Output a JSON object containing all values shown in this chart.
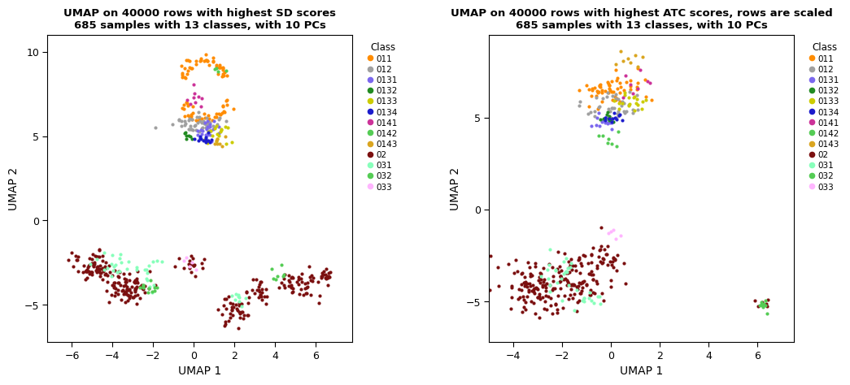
{
  "title1": "UMAP on 40000 rows with highest SD scores\n685 samples with 13 classes, with 10 PCs",
  "title2": "UMAP on 40000 rows with highest ATC scores, rows are scaled\n685 samples with 13 classes, with 10 PCs",
  "xlabel": "UMAP 1",
  "ylabel": "UMAP 2",
  "classes": [
    "011",
    "012",
    "0131",
    "0132",
    "0133",
    "0134",
    "0141",
    "0142",
    "0143",
    "02",
    "031",
    "032",
    "033"
  ],
  "colors": {
    "011": "#FF8C00",
    "012": "#A0A0A0",
    "0131": "#7B68EE",
    "0132": "#228B22",
    "0133": "#CCCC00",
    "0134": "#1C1CCC",
    "0141": "#CC3399",
    "0142": "#55CC55",
    "0143": "#DAA520",
    "02": "#7B1010",
    "031": "#88FFBB",
    "032": "#55CC55",
    "033": "#FFB6FF"
  },
  "plot1_xlim": [
    -7.2,
    7.8
  ],
  "plot1_ylim": [
    -7.2,
    11.0
  ],
  "plot1_xticks": [
    -6,
    -4,
    -2,
    0,
    2,
    4,
    6
  ],
  "plot1_yticks": [
    -5,
    0,
    5,
    10
  ],
  "plot2_xlim": [
    -5.0,
    7.5
  ],
  "plot2_ylim": [
    -7.2,
    9.5
  ],
  "plot2_xticks": [
    -4,
    -2,
    0,
    2,
    4,
    6
  ],
  "plot2_yticks": [
    -5,
    0,
    5
  ],
  "point_size": 9,
  "bg_color": "#FFFFFF",
  "panel_bg": "#FFFFFF"
}
